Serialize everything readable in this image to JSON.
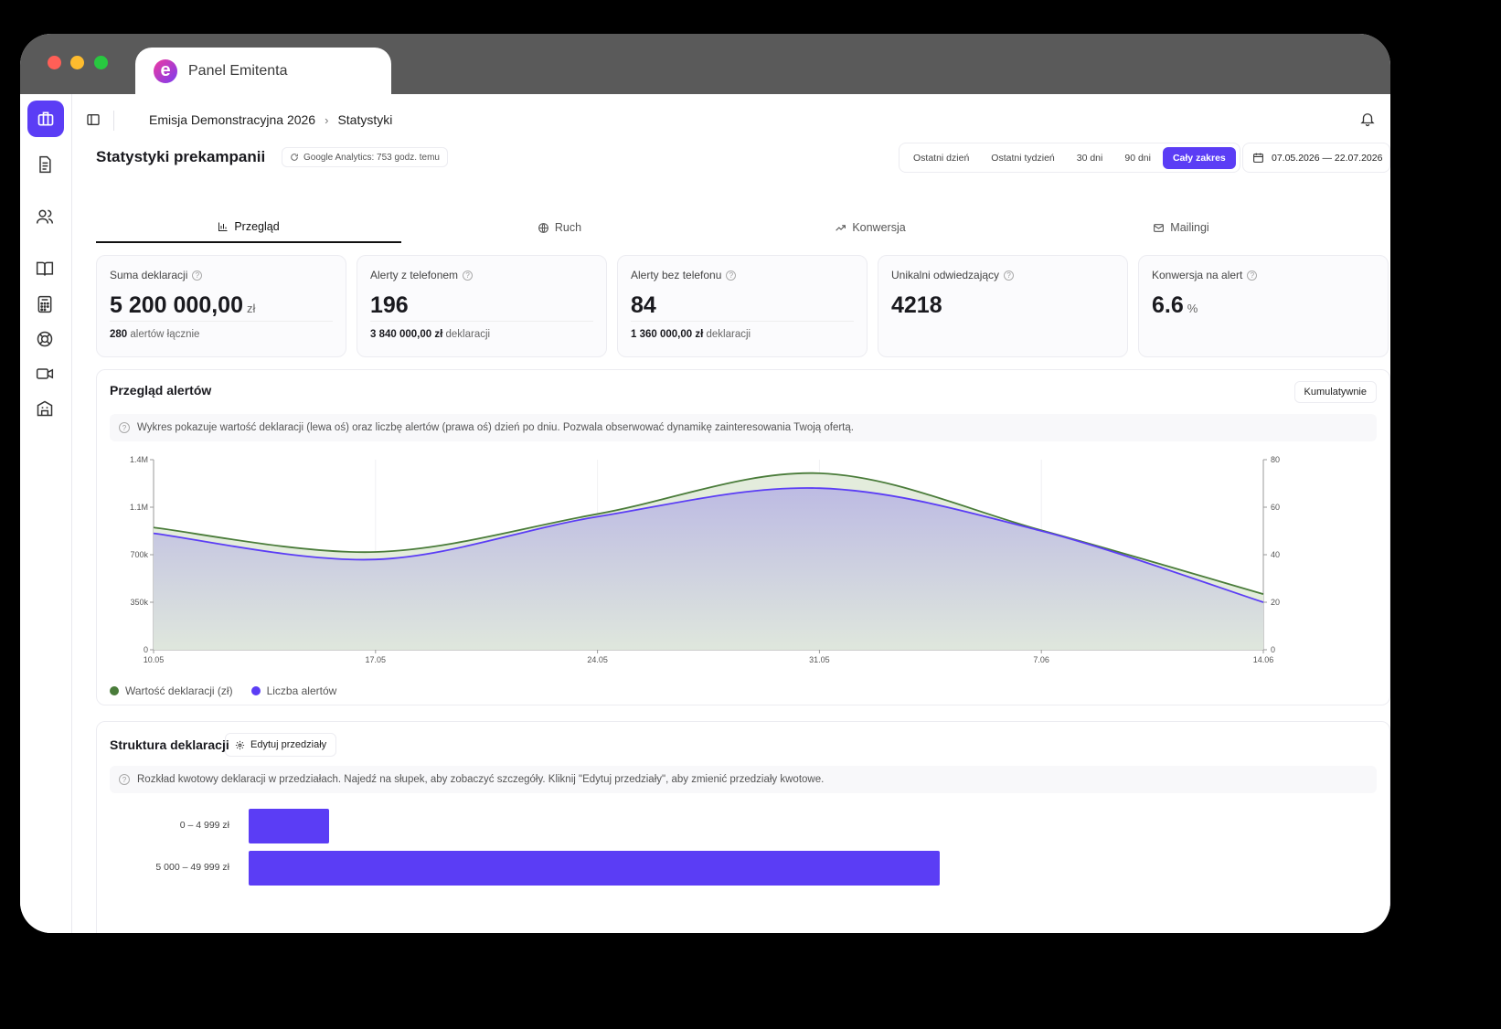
{
  "window": {
    "tab_title": "Panel Emitenta",
    "logo_letter": "e"
  },
  "sidebar": {
    "items": [
      {
        "icon": "briefcase-icon",
        "active": true
      },
      {
        "icon": "document-icon"
      },
      {
        "icon": "users-icon"
      },
      {
        "icon": "book-icon"
      },
      {
        "icon": "calculator-icon"
      },
      {
        "icon": "lifebuoy-icon"
      },
      {
        "icon": "video-icon"
      },
      {
        "icon": "building-icon"
      }
    ]
  },
  "topbar": {
    "breadcrumb": [
      "Emisja Demonstracyjna 2026",
      "Statystyki"
    ]
  },
  "header": {
    "title": "Statystyki prekampanii",
    "ga_status": "Google Analytics: 753 godz. temu",
    "ranges": [
      {
        "label": "Ostatni dzień",
        "active": false
      },
      {
        "label": "Ostatni tydzień",
        "active": false
      },
      {
        "label": "30 dni",
        "active": false
      },
      {
        "label": "90 dni",
        "active": false
      },
      {
        "label": "Cały zakres",
        "active": true
      }
    ],
    "date_range": "07.05.2026 — 22.07.2026"
  },
  "tabs": [
    {
      "label": "Przegląd",
      "icon": "bar-chart-icon",
      "active": true
    },
    {
      "label": "Ruch",
      "icon": "globe-icon",
      "active": false
    },
    {
      "label": "Konwersja",
      "icon": "trending-up-icon",
      "active": false
    },
    {
      "label": "Mailingi",
      "icon": "mail-icon",
      "active": false
    }
  ],
  "cards": [
    {
      "label": "Suma deklaracji",
      "value": "5 200 000,00",
      "unit": "zł",
      "sub_bold": "280",
      "sub_text": "alertów łącznie"
    },
    {
      "label": "Alerty z telefonem",
      "value": "196",
      "unit": "",
      "sub_bold": "3 840 000,00 zł",
      "sub_text": "deklaracji"
    },
    {
      "label": "Alerty bez telefonu",
      "value": "84",
      "unit": "",
      "sub_bold": "1 360 000,00 zł",
      "sub_text": "deklaracji"
    },
    {
      "label": "Unikalni odwiedzający",
      "value": "4218",
      "unit": "",
      "sub_bold": "",
      "sub_text": ""
    },
    {
      "label": "Konwersja na alert",
      "value": "6.6",
      "unit": "%",
      "sub_bold": "",
      "sub_text": ""
    }
  ],
  "alerts_panel": {
    "title": "Przegląd alertów",
    "toggle_label": "Kumulatywnie",
    "info": "Wykres pokazuje wartość deklaracji (lewa oś) oraz liczbę alertów (prawa oś) dzień po dniu. Pozwala obserwować dynamikę zainteresowania Twoją ofertą.",
    "legend": [
      {
        "label": "Wartość deklaracji (zł)",
        "color": "#4a7c3a"
      },
      {
        "label": "Liczba alertów",
        "color": "#5b3df5"
      }
    ]
  },
  "chart_data": {
    "type": "area",
    "x": [
      "10.05",
      "17.05",
      "24.05",
      "31.05",
      "7.06",
      "14.06"
    ],
    "y_left_ticks": [
      "0",
      "350k",
      "700k",
      "1.1M",
      "1.4M"
    ],
    "y_left_max": 1400000,
    "y_right_ticks": [
      "0",
      "20",
      "40",
      "60",
      "80"
    ],
    "y_right_max": 80,
    "series": [
      {
        "name": "Wartość deklaracji (zł)",
        "axis": "left",
        "color": "#4a7c3a",
        "values": [
          900000,
          720000,
          1000000,
          1300000,
          880000,
          410000
        ]
      },
      {
        "name": "Liczba alertów",
        "axis": "right",
        "color": "#5b3df5",
        "values": [
          49,
          38,
          56,
          68,
          50,
          20
        ]
      }
    ]
  },
  "structure_panel": {
    "title": "Struktura deklaracji",
    "edit_label": "Edytuj przedziały",
    "info": "Rozkład kwotowy deklaracji w przedziałach. Najedź na słupek, aby zobaczyć szczegóły. Kliknij \"Edytuj przedziały\", aby zmienić przedziały kwotowe.",
    "bar_color": "#5b3df5",
    "bars": [
      {
        "label": "0 – 4 999 zł",
        "value": 1
      },
      {
        "label": "5 000 – 49 999 zł",
        "value": 8.6
      }
    ],
    "bar_max": 14
  }
}
